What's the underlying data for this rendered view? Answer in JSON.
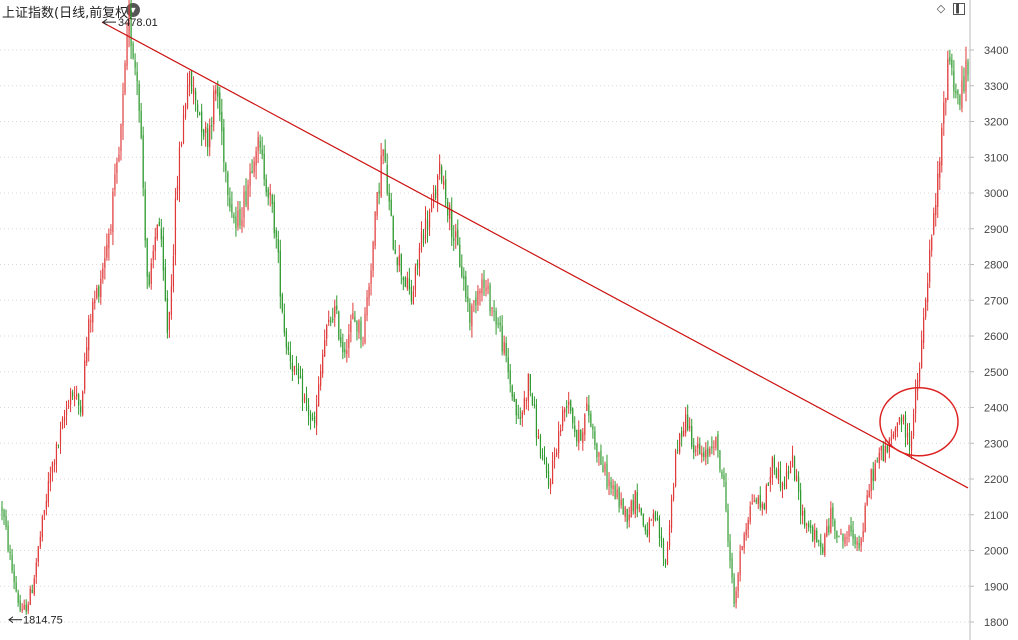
{
  "header": {
    "title": "上证指数(日线,前复权)",
    "menu_icon": "chevron-down-icon",
    "diamond_icon": "diamond-icon",
    "panel_icon": "panel-toggle-icon"
  },
  "colors": {
    "up": "#e03a3a",
    "down": "#2f9a2f",
    "trendline": "#cc1111",
    "ellipse": "#dd2222",
    "grid": "#d8d8d8",
    "axis": "#bbbbbb"
  },
  "chart_data": {
    "type": "candlestick",
    "title": "上证指数(日线,前复权)",
    "y_axis": {
      "position": "right",
      "ylim": [
        1760,
        3510
      ],
      "ticks": [
        1800,
        1900,
        2000,
        2100,
        2200,
        2300,
        2400,
        2500,
        2600,
        2700,
        2800,
        2900,
        3000,
        3100,
        3200,
        3300,
        3400
      ]
    },
    "grid": "horizontal-dotted",
    "annotations": [
      {
        "label": "3478.01",
        "value": 3478.01,
        "kind": "period-high"
      },
      {
        "label": "1814.75",
        "value": 1814.75,
        "kind": "period-low"
      }
    ],
    "trendline": {
      "start_value": 3478,
      "end_value": 2175
    },
    "highlight": {
      "shape": "ellipse",
      "center_value": 2360
    },
    "close_path": [
      2120,
      1950,
      1815,
      1880,
      2050,
      2220,
      2320,
      2450,
      2400,
      2650,
      2750,
      2900,
      3100,
      3478,
      3300,
      2700,
      2950,
      2600,
      3050,
      3320,
      3250,
      3150,
      3300,
      3050,
      2900,
      3000,
      3150,
      3050,
      2900,
      2600,
      2500,
      2420,
      2340,
      2580,
      2680,
      2560,
      2650,
      2600,
      2850,
      3130,
      2880,
      2780,
      2700,
      2880,
      2950,
      3070,
      2920,
      2800,
      2650,
      2760,
      2700,
      2620,
      2480,
      2350,
      2480,
      2300,
      2180,
      2320,
      2440,
      2300,
      2400,
      2280,
      2200,
      2150,
      2100,
      2150,
      2050,
      2090,
      1960,
      2250,
      2380,
      2290,
      2250,
      2320,
      2180,
      1850,
      2050,
      2150,
      2120,
      2250,
      2180,
      2250,
      2100,
      2050,
      2000,
      2100,
      2030,
      2050,
      2020,
      2200,
      2270,
      2290,
      2380,
      2300,
      2500,
      2800,
      3050,
      3400,
      3250,
      3350
    ],
    "volatility": 60
  }
}
